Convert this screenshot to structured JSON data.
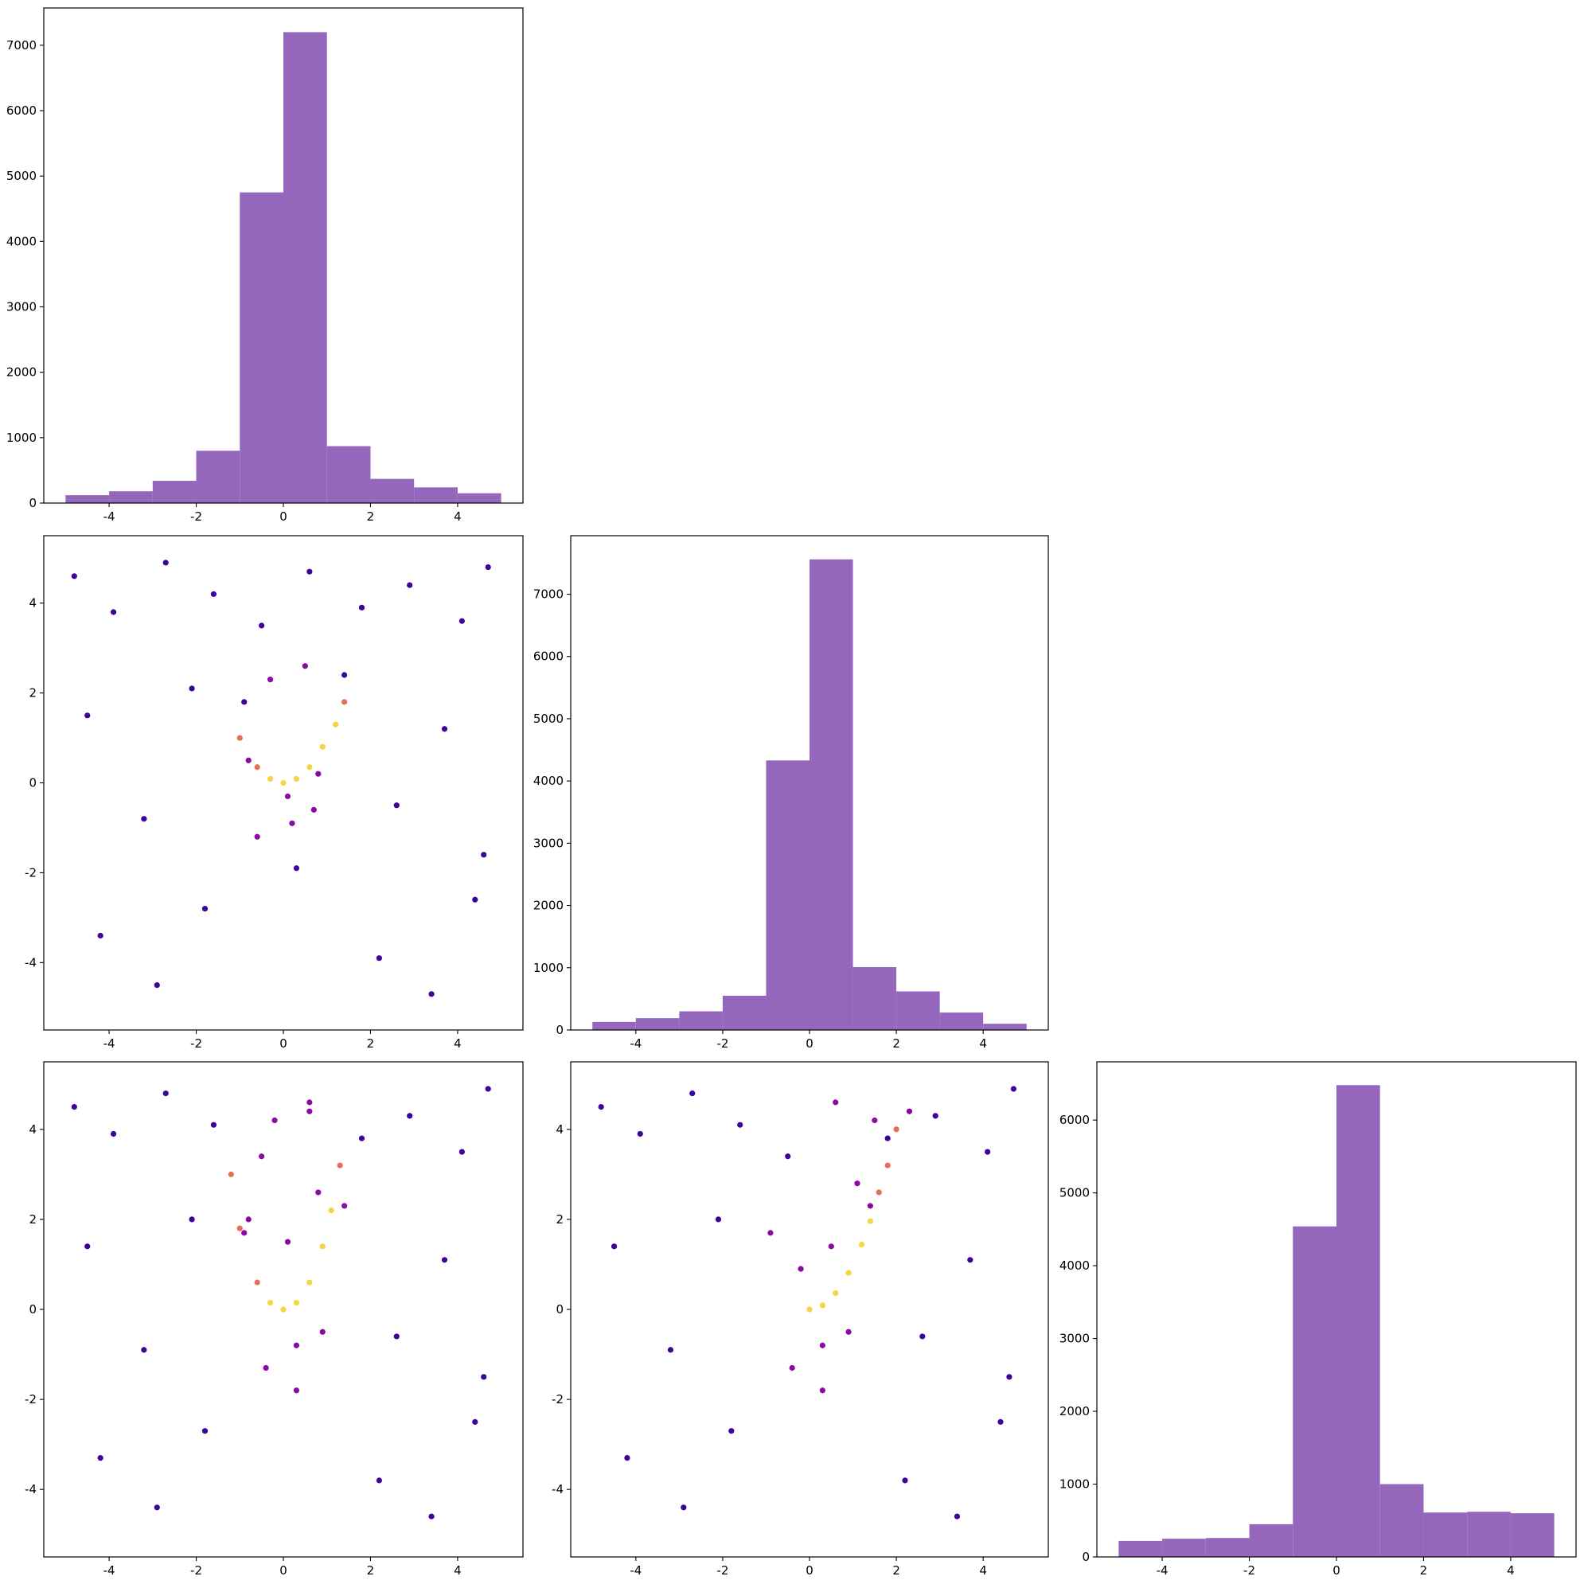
{
  "chart_data": [
    {
      "type": "histogram",
      "color": "#9467bd",
      "bins": [
        -5,
        -4,
        -3,
        -2,
        -1,
        0,
        1,
        2,
        3,
        4,
        5
      ],
      "values": [
        120,
        180,
        340,
        800,
        4750,
        7200,
        870,
        370,
        240,
        150
      ],
      "xlim": [
        -5.5,
        5.5
      ],
      "ylim": [
        0,
        7570
      ],
      "xticks": [
        -4,
        -2,
        0,
        2,
        4
      ],
      "yticks": [
        0,
        1000,
        2000,
        3000,
        4000,
        5000,
        6000,
        7000
      ]
    },
    {
      "type": "scatter",
      "x": [
        -4.8,
        -3.9,
        -2.7,
        -1.6,
        -0.5,
        0.6,
        1.8,
        2.9,
        4.1,
        4.7,
        -4.5,
        -3.2,
        -2.1,
        -0.9,
        0.3,
        1.4,
        2.6,
        3.7,
        4.6,
        -4.2,
        -2.9,
        -1.8,
        2.2,
        3.4,
        4.4,
        -0.6,
        0.2,
        0.7,
        -0.3,
        0.5,
        -1.0,
        -0.6,
        -0.3,
        0,
        0.3,
        0.6,
        0.9,
        1.2,
        1.4,
        -0.8,
        0.1,
        0.8
      ],
      "y": [
        4.6,
        3.8,
        4.9,
        4.2,
        3.5,
        4.7,
        3.9,
        4.4,
        3.6,
        4.8,
        1.5,
        -0.8,
        2.1,
        1.8,
        -1.9,
        2.4,
        -0.5,
        1.2,
        -1.6,
        -3.4,
        -4.5,
        -2.8,
        -3.9,
        -4.7,
        -2.6,
        -1.2,
        -0.9,
        -0.6,
        2.3,
        2.6,
        1.0,
        0.35,
        0.09,
        0,
        0.09,
        0.35,
        0.8,
        1.3,
        1.8,
        0.5,
        -0.3,
        0.2
      ],
      "colors": [
        "#3d049b",
        "#3d049b",
        "#3d049b",
        "#3d049b",
        "#3d049b",
        "#3d049b",
        "#3d049b",
        "#3d049b",
        "#3d049b",
        "#3d049b",
        "#3d049b",
        "#3d049b",
        "#3d049b",
        "#3d049b",
        "#3d049b",
        "#3d049b",
        "#3d049b",
        "#3d049b",
        "#3d049b",
        "#3d049b",
        "#3d049b",
        "#3d049b",
        "#3d049b",
        "#3d049b",
        "#3d049b",
        "#8b0aa5",
        "#8b0aa5",
        "#8b0aa5",
        "#8b0aa5",
        "#8b0aa5",
        "#e76f5a",
        "#e76f5a",
        "#f6d543",
        "#f6d543",
        "#f6d543",
        "#f6d543",
        "#f6d543",
        "#f6d543",
        "#e76f5a",
        "#8b0aa5",
        "#8b0aa5",
        "#8b0aa5"
      ],
      "xlim": [
        -5.5,
        5.5
      ],
      "ylim": [
        -5.5,
        5.5
      ],
      "xticks": [
        -4,
        -2,
        0,
        2,
        4
      ],
      "yticks": [
        -4,
        -2,
        0,
        2,
        4
      ]
    },
    {
      "type": "histogram",
      "color": "#9467bd",
      "bins": [
        -5,
        -4,
        -3,
        -2,
        -1,
        0,
        1,
        2,
        3,
        4,
        5
      ],
      "values": [
        130,
        190,
        300,
        550,
        4330,
        7560,
        1010,
        620,
        280,
        100
      ],
      "xlim": [
        -5.5,
        5.5
      ],
      "ylim": [
        0,
        7940
      ],
      "xticks": [
        -4,
        -2,
        0,
        2,
        4
      ],
      "yticks": [
        0,
        1000,
        2000,
        3000,
        4000,
        5000,
        6000,
        7000
      ]
    },
    {
      "type": "scatter",
      "x": [
        -4.8,
        -3.9,
        -2.7,
        -1.6,
        -0.5,
        0.6,
        1.8,
        2.9,
        4.1,
        4.7,
        -4.5,
        -3.2,
        -2.1,
        -0.9,
        0.3,
        1.4,
        2.6,
        3.7,
        4.6,
        -4.2,
        -2.9,
        -1.8,
        2.2,
        3.4,
        4.4,
        -0.4,
        0.3,
        0.9,
        -0.2,
        0.6,
        -1.2,
        -1.0,
        -0.6,
        -0.3,
        0,
        0.3,
        0.6,
        0.9,
        1.1,
        1.3,
        -0.8,
        0.1,
        0.8
      ],
      "y": [
        4.5,
        3.9,
        4.8,
        4.1,
        3.4,
        4.6,
        3.8,
        4.3,
        3.5,
        4.9,
        1.4,
        -0.9,
        2.0,
        1.7,
        -1.8,
        2.3,
        -0.6,
        1.1,
        -1.5,
        -3.3,
        -4.4,
        -2.7,
        -3.8,
        -4.6,
        -2.5,
        -1.3,
        -0.8,
        -0.5,
        4.2,
        4.4,
        3.0,
        1.8,
        0.6,
        0.15,
        0,
        0.15,
        0.6,
        1.4,
        2.2,
        3.2,
        2.0,
        1.5,
        2.6
      ],
      "colors": [
        "#3d049b",
        "#3d049b",
        "#3d049b",
        "#3d049b",
        "#8b0aa5",
        "#8b0aa5",
        "#3d049b",
        "#3d049b",
        "#3d049b",
        "#3d049b",
        "#3d049b",
        "#3d049b",
        "#3d049b",
        "#8b0aa5",
        "#8b0aa5",
        "#8b0aa5",
        "#3d049b",
        "#3d049b",
        "#3d049b",
        "#3d049b",
        "#3d049b",
        "#3d049b",
        "#3d049b",
        "#3d049b",
        "#3d049b",
        "#8b0aa5",
        "#8b0aa5",
        "#8b0aa5",
        "#8b0aa5",
        "#8b0aa5",
        "#e76f5a",
        "#e76f5a",
        "#e76f5a",
        "#f6d543",
        "#f6d543",
        "#f6d543",
        "#f6d543",
        "#f6d543",
        "#f6d543",
        "#e76f5a",
        "#8b0aa5",
        "#8b0aa5",
        "#8b0aa5"
      ],
      "xlim": [
        -5.5,
        5.5
      ],
      "ylim": [
        -5.5,
        5.5
      ],
      "xticks": [
        -4,
        -2,
        0,
        2,
        4
      ],
      "yticks": [
        -4,
        -2,
        0,
        2,
        4
      ]
    },
    {
      "type": "scatter",
      "x": [
        -4.8,
        -3.9,
        -2.7,
        -1.6,
        -0.5,
        0.6,
        1.8,
        2.9,
        4.1,
        4.7,
        -4.5,
        -3.2,
        -2.1,
        -0.9,
        0.3,
        1.4,
        2.6,
        3.7,
        4.6,
        -4.2,
        -2.9,
        -1.8,
        2.2,
        3.4,
        4.4,
        -0.4,
        0.3,
        0.9,
        1.5,
        2.3,
        0,
        0.3,
        0.6,
        0.9,
        1.2,
        1.4,
        1.6,
        1.8,
        2.0,
        -0.2,
        0.5,
        1.1
      ],
      "y": [
        4.5,
        3.9,
        4.8,
        4.1,
        3.4,
        4.6,
        3.8,
        4.3,
        3.5,
        4.9,
        1.4,
        -0.9,
        2.0,
        1.7,
        -1.8,
        2.3,
        -0.6,
        1.1,
        -1.5,
        -3.3,
        -4.4,
        -2.7,
        -3.8,
        -4.6,
        -2.5,
        -1.3,
        -0.8,
        -0.5,
        4.2,
        4.4,
        0,
        0.09,
        0.36,
        0.81,
        1.44,
        1.96,
        2.6,
        3.2,
        4.0,
        0.9,
        1.4,
        2.8
      ],
      "colors": [
        "#3d049b",
        "#3d049b",
        "#3d049b",
        "#3d049b",
        "#3d049b",
        "#8b0aa5",
        "#3d049b",
        "#3d049b",
        "#3d049b",
        "#3d049b",
        "#3d049b",
        "#3d049b",
        "#3d049b",
        "#8b0aa5",
        "#8b0aa5",
        "#8b0aa5",
        "#3d049b",
        "#3d049b",
        "#3d049b",
        "#3d049b",
        "#3d049b",
        "#3d049b",
        "#3d049b",
        "#3d049b",
        "#3d049b",
        "#8b0aa5",
        "#8b0aa5",
        "#8b0aa5",
        "#8b0aa5",
        "#8b0aa5",
        "#f6d543",
        "#f6d543",
        "#f6d543",
        "#f6d543",
        "#f6d543",
        "#f6d543",
        "#e76f5a",
        "#e76f5a",
        "#e76f5a",
        "#8b0aa5",
        "#8b0aa5",
        "#8b0aa5"
      ],
      "xlim": [
        -5.5,
        5.5
      ],
      "ylim": [
        -5.5,
        5.5
      ],
      "xticks": [
        -4,
        -2,
        0,
        2,
        4
      ],
      "yticks": [
        -4,
        -2,
        0,
        2,
        4
      ]
    },
    {
      "type": "histogram",
      "color": "#9467bd",
      "bins": [
        -5,
        -4,
        -3,
        -2,
        -1,
        0,
        1,
        2,
        3,
        4,
        5
      ],
      "values": [
        220,
        250,
        260,
        450,
        4540,
        6480,
        1000,
        610,
        620,
        600
      ],
      "xlim": [
        -5.5,
        5.5
      ],
      "ylim": [
        0,
        6800
      ],
      "xticks": [
        -4,
        -2,
        0,
        2,
        4
      ],
      "yticks": [
        0,
        1000,
        2000,
        3000,
        4000,
        5000,
        6000
      ]
    }
  ]
}
